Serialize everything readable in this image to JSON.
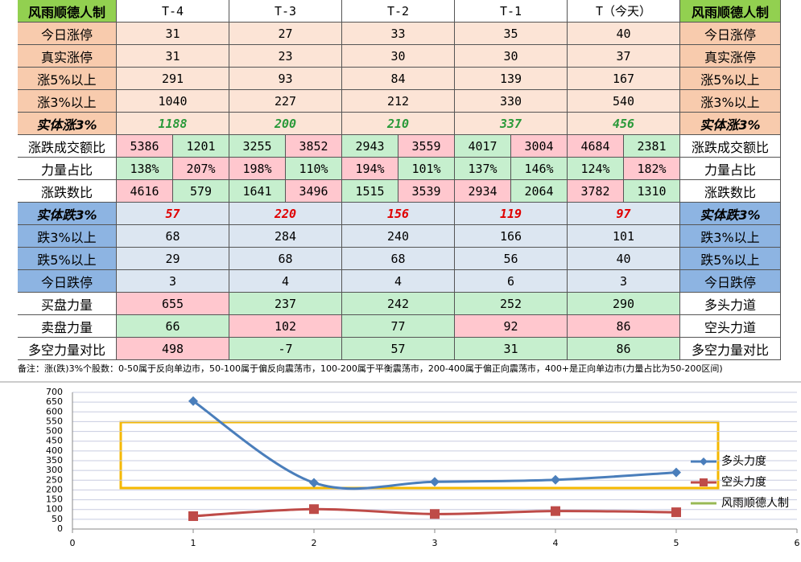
{
  "table": {
    "header": [
      "风雨顺德人制",
      "T-4",
      "T-3",
      "T-2",
      "T-1",
      "T（今天）",
      "风雨顺德人制"
    ],
    "rows": [
      {
        "label": "今日涨停",
        "cells": [
          "31",
          "27",
          "33",
          "35",
          "40"
        ],
        "right": "今日涨停"
      },
      {
        "label": "真实涨停",
        "cells": [
          "31",
          "23",
          "30",
          "30",
          "37"
        ],
        "right": "真实涨停"
      },
      {
        "label": "涨5%以上",
        "cells": [
          "291",
          "93",
          "84",
          "139",
          "167"
        ],
        "right": "涨5%以上"
      },
      {
        "label": "涨3%以上",
        "cells": [
          "1040",
          "227",
          "212",
          "330",
          "540"
        ],
        "right": "涨3%以上"
      },
      {
        "label": "实体涨3%",
        "cells": [
          "1188",
          "200",
          "210",
          "337",
          "456"
        ],
        "right": "实体涨3%"
      },
      {
        "label": "涨跌成交额比",
        "cells": [
          [
            "5386",
            "1201"
          ],
          [
            "3255",
            "3852"
          ],
          [
            "2943",
            "3559"
          ],
          [
            "4017",
            "3004"
          ],
          [
            "4684",
            "2381"
          ]
        ],
        "right": "涨跌成交额比"
      },
      {
        "label": "力量占比",
        "cells": [
          [
            "138%",
            "207%"
          ],
          [
            "198%",
            "110%"
          ],
          [
            "194%",
            "101%"
          ],
          [
            "137%",
            "146%"
          ],
          [
            "124%",
            "182%"
          ]
        ],
        "right": "力量占比"
      },
      {
        "label": "涨跌数比",
        "cells": [
          [
            "4616",
            "579"
          ],
          [
            "1641",
            "3496"
          ],
          [
            "1515",
            "3539"
          ],
          [
            "2934",
            "2064"
          ],
          [
            "3782",
            "1310"
          ]
        ],
        "right": "涨跌数比"
      },
      {
        "label": "实体跌3%",
        "cells": [
          "57",
          "220",
          "156",
          "119",
          "97"
        ],
        "right": "实体跌3%"
      },
      {
        "label": "跌3%以上",
        "cells": [
          "68",
          "284",
          "240",
          "166",
          "101"
        ],
        "right": "跌3%以上"
      },
      {
        "label": "跌5%以上",
        "cells": [
          "29",
          "68",
          "68",
          "56",
          "40"
        ],
        "right": "跌5%以上"
      },
      {
        "label": "今日跌停",
        "cells": [
          "3",
          "4",
          "4",
          "6",
          "3"
        ],
        "right": "今日跌停"
      },
      {
        "label": "买盘力量",
        "cells": [
          "655",
          "237",
          "242",
          "252",
          "290"
        ],
        "right": "多头力道"
      },
      {
        "label": "卖盘力量",
        "cells": [
          "66",
          "102",
          "77",
          "92",
          "86"
        ],
        "right": "空头力道"
      },
      {
        "label": "多空力量对比",
        "cells": [
          "498",
          "-7",
          "57",
          "31",
          "86"
        ],
        "right": "多空力量对比"
      }
    ],
    "note": "备注：涨(跌)3%个股数：0-50属于反向单边市，50-100属于偏反向震荡市，100-200属于平衡震荡市，200-400属于偏正向震荡市，400+是正向单边市(力量占比为50-200区间)"
  },
  "chart_data": {
    "type": "line",
    "x": [
      1,
      2,
      3,
      4,
      5
    ],
    "xlim": [
      0,
      6
    ],
    "xticks": [
      0,
      1,
      2,
      3,
      4,
      5,
      6
    ],
    "ylim": [
      0,
      700
    ],
    "yticks": [
      0,
      50,
      100,
      150,
      200,
      250,
      300,
      350,
      400,
      450,
      500,
      550,
      600,
      650,
      700
    ],
    "grid": true,
    "series": [
      {
        "name": "多头力度",
        "color": "#4a7ebb",
        "values": [
          655,
          237,
          242,
          252,
          290
        ]
      },
      {
        "name": "空头力度",
        "color": "#be4b48",
        "values": [
          66,
          102,
          77,
          92,
          86
        ]
      },
      {
        "name": "风雨顺德人制",
        "color": "#98b954",
        "values": [
          null,
          null,
          null,
          null,
          null
        ]
      }
    ]
  }
}
